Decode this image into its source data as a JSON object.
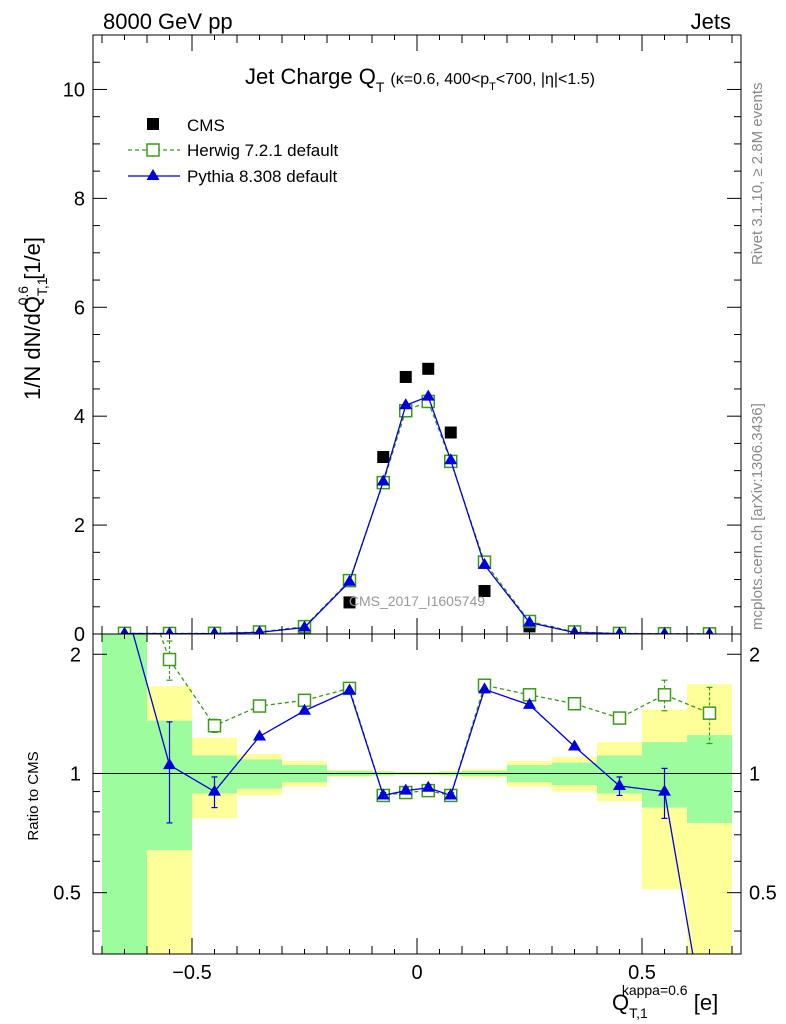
{
  "header": {
    "energy_label": "8000 GeV pp",
    "category_label": "Jets"
  },
  "side_labels": {
    "rivet": "Rivet 3.1.10, ≥ 2.8M events",
    "mcplots": "mcplots.cern.ch [arXiv:1306.3436]"
  },
  "chart_data": [
    {
      "type": "scatter",
      "panel": "main",
      "title_main": "Jet Charge Q",
      "title_sub": "T",
      "title_cond_a": "(κ=0.6, 400<p",
      "title_cond_b": "T",
      "title_cond_c": "<700, |η|<1.5)",
      "ylabel": "1/N dN/dQ",
      "ylabel_sup": "0.6",
      "ylabel_sub": "T,1",
      "ylabel_unit": " [1/e]",
      "analysis_id": "CMS_2017_I1605749",
      "xlim": [
        -0.72,
        0.72
      ],
      "ylim": [
        0,
        11
      ],
      "y_ticks": [
        0,
        2,
        4,
        6,
        8,
        10
      ],
      "y_tick_labels": [
        "0",
        "2",
        "4",
        "6",
        "8",
        "10"
      ],
      "legend": [
        "CMS",
        "Herwig 7.2.1 default",
        "Pythia 8.308 default"
      ],
      "x": [
        -0.65,
        -0.55,
        -0.45,
        -0.35,
        -0.25,
        -0.15,
        -0.075,
        -0.025,
        0.025,
        0.075,
        0.15,
        0.25,
        0.35,
        0.45,
        0.55,
        0.65
      ],
      "series": [
        {
          "name": "CMS",
          "color": "#000000",
          "values": [
            0.003,
            0.005,
            0.009,
            0.025,
            0.085,
            0.58,
            3.25,
            4.72,
            4.87,
            3.7,
            0.79,
            0.14,
            0.025,
            0.007,
            0.003,
            0.002
          ]
        },
        {
          "name": "Herwig 7.2.1 default",
          "color": "#3a9a1a",
          "values": [
            0.012,
            0.01,
            0.012,
            0.037,
            0.135,
            0.98,
            2.78,
            4.1,
            4.27,
            3.17,
            1.32,
            0.23,
            0.038,
            0.01,
            0.005,
            0.003
          ]
        },
        {
          "name": "Pythia 8.308 default",
          "color": "#0000dd",
          "values": [
            0.008,
            0.0055,
            0.0082,
            0.03,
            0.12,
            0.96,
            2.8,
            4.2,
            4.36,
            3.19,
            1.27,
            0.21,
            0.028,
            0.0065,
            0.0027,
            0.0005
          ]
        }
      ]
    },
    {
      "type": "line",
      "panel": "ratio",
      "ylabel": "Ratio to CMS",
      "xlabel": "Q",
      "xlabel_sub": "T,1",
      "xlabel_sup": "kappa=0.6",
      "xlabel_unit": " [e]",
      "xlim": [
        -0.72,
        0.72
      ],
      "ylim": [
        0.35,
        2.25
      ],
      "y_ticks": [
        0.5,
        1,
        2
      ],
      "y_tick_labels": [
        "0.5",
        "1",
        "2"
      ],
      "x_ticks": [
        -0.5,
        0,
        0.5
      ],
      "x_tick_labels": [
        "−0.5",
        "0",
        "0.5"
      ],
      "bins": [
        [
          -0.7,
          -0.6
        ],
        [
          -0.6,
          -0.5
        ],
        [
          -0.5,
          -0.4
        ],
        [
          -0.4,
          -0.3
        ],
        [
          -0.3,
          -0.2
        ],
        [
          -0.2,
          -0.1
        ],
        [
          -0.1,
          -0.05
        ],
        [
          -0.05,
          0.0
        ],
        [
          0.0,
          0.05
        ],
        [
          0.05,
          0.1
        ],
        [
          0.1,
          0.2
        ],
        [
          0.2,
          0.3
        ],
        [
          0.3,
          0.4
        ],
        [
          0.4,
          0.5
        ],
        [
          0.5,
          0.6
        ],
        [
          0.6,
          0.7
        ]
      ],
      "band_stat_lo": [
        0.3,
        0.64,
        0.89,
        0.915,
        0.95,
        0.985,
        0.99,
        0.993,
        0.993,
        0.99,
        0.985,
        0.95,
        0.935,
        0.89,
        0.82,
        0.75
      ],
      "band_stat_hi": [
        2.25,
        1.36,
        1.11,
        1.085,
        1.05,
        1.015,
        1.01,
        1.007,
        1.007,
        1.01,
        1.015,
        1.05,
        1.065,
        1.11,
        1.2,
        1.25
      ],
      "band_total_lo": [
        0.3,
        0.27,
        0.77,
        0.88,
        0.925,
        0.98,
        0.985,
        0.99,
        0.99,
        0.985,
        0.975,
        0.925,
        0.9,
        0.85,
        0.51,
        0.3
      ],
      "band_total_hi": [
        2.25,
        1.66,
        1.23,
        1.12,
        1.075,
        1.02,
        1.015,
        1.01,
        1.01,
        1.015,
        1.025,
        1.075,
        1.1,
        1.2,
        1.45,
        1.68
      ],
      "band_colors": {
        "stat": "#9dfc9d",
        "total": "#ffff99"
      },
      "x": [
        -0.65,
        -0.55,
        -0.45,
        -0.35,
        -0.25,
        -0.15,
        -0.075,
        -0.025,
        0.025,
        0.075,
        0.15,
        0.25,
        0.35,
        0.45,
        0.55,
        0.65
      ],
      "series": [
        {
          "name": "Herwig 7.2.1 default",
          "color": "#3a9a1a",
          "dashed": true,
          "values": [
            4.0,
            1.94,
            1.32,
            1.48,
            1.53,
            1.64,
            0.88,
            0.895,
            0.905,
            0.88,
            1.67,
            1.58,
            1.5,
            1.38,
            1.58,
            1.42
          ],
          "err": [
            0,
            0.22,
            0.05,
            0,
            0,
            0,
            0.015,
            0.015,
            0.015,
            0.015,
            0,
            0,
            0,
            0.03,
            0.14,
            0.23
          ]
        },
        {
          "name": "Pythia 8.308 default",
          "color": "#0000dd",
          "dashed": false,
          "values": [
            2.7,
            1.05,
            0.9,
            1.24,
            1.44,
            1.62,
            0.88,
            0.905,
            0.92,
            0.88,
            1.63,
            1.49,
            1.17,
            0.93,
            0.9,
            0.2
          ],
          "err": [
            0,
            0.3,
            0.08,
            0,
            0,
            0,
            0.015,
            0.015,
            0.015,
            0.015,
            0,
            0,
            0,
            0.05,
            0.13,
            0
          ]
        }
      ]
    }
  ]
}
